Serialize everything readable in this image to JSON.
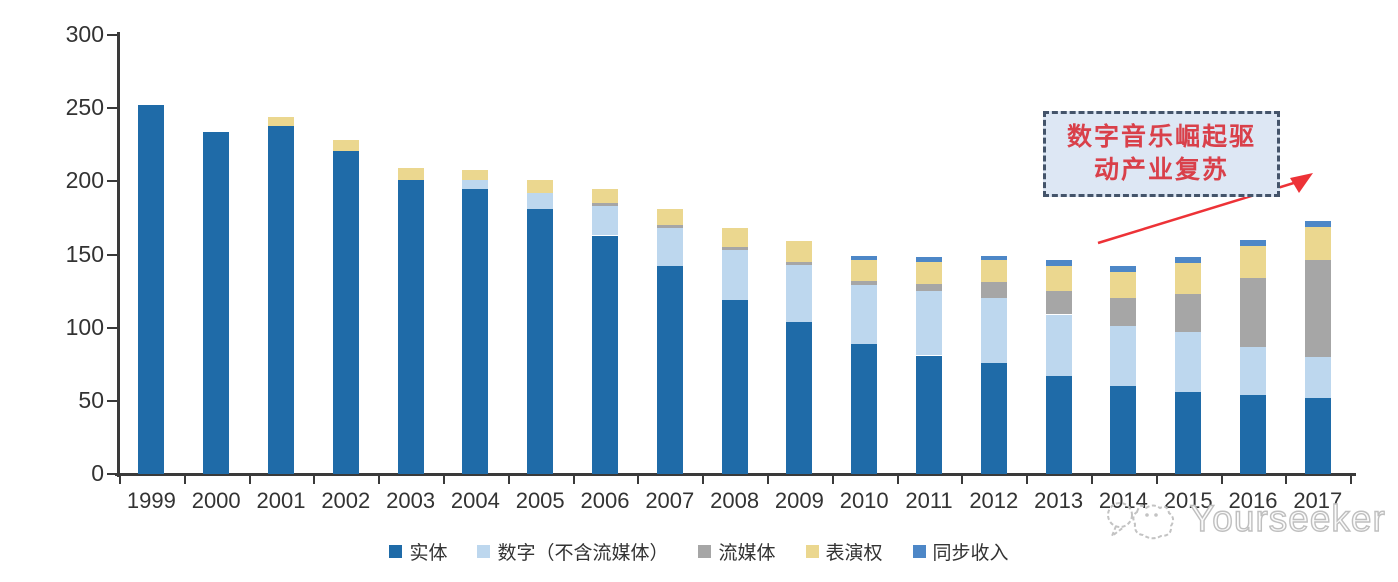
{
  "chart_data": {
    "type": "bar",
    "stacked": true,
    "x": [
      1999,
      2000,
      2001,
      2002,
      2003,
      2004,
      2005,
      2006,
      2007,
      2008,
      2009,
      2010,
      2011,
      2012,
      2013,
      2014,
      2015,
      2016,
      2017
    ],
    "series": [
      {
        "id": "physical",
        "name": "实体",
        "color": "#1F6BA8",
        "values": [
          252,
          234,
          238,
          221,
          201,
          195,
          181,
          163,
          142,
          119,
          104,
          89,
          81,
          76,
          67,
          60,
          56,
          54,
          52
        ]
      },
      {
        "id": "digital",
        "name": "数字（不含流媒体）",
        "color": "#BDD7EE",
        "values": [
          0,
          0,
          0,
          0,
          0,
          6,
          11,
          20,
          26,
          34,
          39,
          40,
          44,
          44,
          42,
          41,
          41,
          33,
          28
        ]
      },
      {
        "id": "streaming",
        "name": "流媒体",
        "color": "#A6A6A6",
        "values": [
          0,
          0,
          0,
          0,
          0,
          0,
          0,
          2,
          2,
          2,
          2,
          3,
          5,
          11,
          16,
          19,
          26,
          47,
          66
        ]
      },
      {
        "id": "performance",
        "name": "表演权",
        "color": "#EBD78F",
        "values": [
          0,
          0,
          6,
          7,
          8,
          7,
          9,
          10,
          11,
          13,
          14,
          14,
          15,
          15,
          17,
          18,
          21,
          22,
          23
        ]
      },
      {
        "id": "sync",
        "name": "同步收入",
        "color": "#4D87C7",
        "values": [
          0,
          0,
          0,
          0,
          0,
          0,
          0,
          0,
          0,
          0,
          0,
          3,
          3,
          3,
          4,
          4,
          4,
          4,
          4
        ]
      }
    ],
    "ylim": [
      0,
      300
    ],
    "y_ticks": [
      0,
      50,
      100,
      150,
      200,
      250,
      300
    ],
    "grid": false,
    "legend_position": "bottom",
    "title": "",
    "xlabel": "",
    "ylabel": ""
  },
  "annotation": {
    "text": "数字音乐崛起驱动产业复苏",
    "line1": "数字音乐崛起驱",
    "line2": "动产业复苏"
  },
  "watermark": {
    "text": "Yourseeker"
  },
  "icons": {
    "annotation_arrow": "red-arrow-up-right",
    "watermark_logo": "speech-bubbles-outline"
  },
  "colors": {
    "axis": "#3A3A3A",
    "text": "#333333",
    "annotation_text": "#D9404A",
    "annotation_border": "#44546A",
    "annotation_fill": "#DDE7F4",
    "arrow": "#ED3237",
    "watermark": "#BFBFBF"
  }
}
